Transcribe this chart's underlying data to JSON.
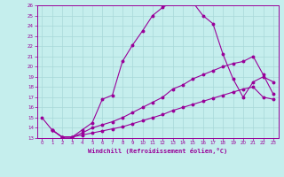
{
  "xlabel": "Windchill (Refroidissement éolien,°C)",
  "xlim": [
    -0.5,
    23.5
  ],
  "ylim": [
    13,
    26
  ],
  "xticks": [
    0,
    1,
    2,
    3,
    4,
    5,
    6,
    7,
    8,
    9,
    10,
    11,
    12,
    13,
    14,
    15,
    16,
    17,
    18,
    19,
    20,
    21,
    22,
    23
  ],
  "yticks": [
    13,
    14,
    15,
    16,
    17,
    18,
    19,
    20,
    21,
    22,
    23,
    24,
    25,
    26
  ],
  "bg_color": "#c5eeed",
  "line_color": "#990099",
  "grid_color": "#a8d8d8",
  "line1_x": [
    0,
    1,
    2,
    3,
    4,
    5,
    6,
    7,
    8,
    9,
    10,
    11,
    12,
    13,
    14,
    15,
    16,
    17,
    18,
    19,
    20,
    21,
    22,
    23
  ],
  "line1_y": [
    15.0,
    13.8,
    13.1,
    13.1,
    13.8,
    14.5,
    16.8,
    17.2,
    20.5,
    22.1,
    23.5,
    25.0,
    25.8,
    26.3,
    26.5,
    26.3,
    25.0,
    24.2,
    21.2,
    18.8,
    17.0,
    18.5,
    19.0,
    18.5
  ],
  "line2_x": [
    1,
    2,
    3,
    4,
    5,
    6,
    7,
    8,
    9,
    10,
    11,
    12,
    13,
    14,
    15,
    16,
    17,
    18,
    19,
    20,
    21,
    22,
    23
  ],
  "line2_y": [
    13.8,
    13.1,
    13.1,
    13.5,
    14.0,
    14.3,
    14.6,
    15.0,
    15.5,
    16.0,
    16.5,
    17.0,
    17.8,
    18.2,
    18.8,
    19.2,
    19.6,
    20.0,
    20.3,
    20.5,
    21.0,
    19.2,
    17.3
  ],
  "line3_x": [
    1,
    2,
    3,
    4,
    5,
    6,
    7,
    8,
    9,
    10,
    11,
    12,
    13,
    14,
    15,
    16,
    17,
    18,
    19,
    20,
    21,
    22,
    23
  ],
  "line3_y": [
    13.8,
    13.1,
    13.1,
    13.3,
    13.5,
    13.7,
    13.9,
    14.1,
    14.4,
    14.7,
    15.0,
    15.3,
    15.7,
    16.0,
    16.3,
    16.6,
    16.9,
    17.2,
    17.5,
    17.8,
    18.0,
    17.0,
    16.8
  ]
}
